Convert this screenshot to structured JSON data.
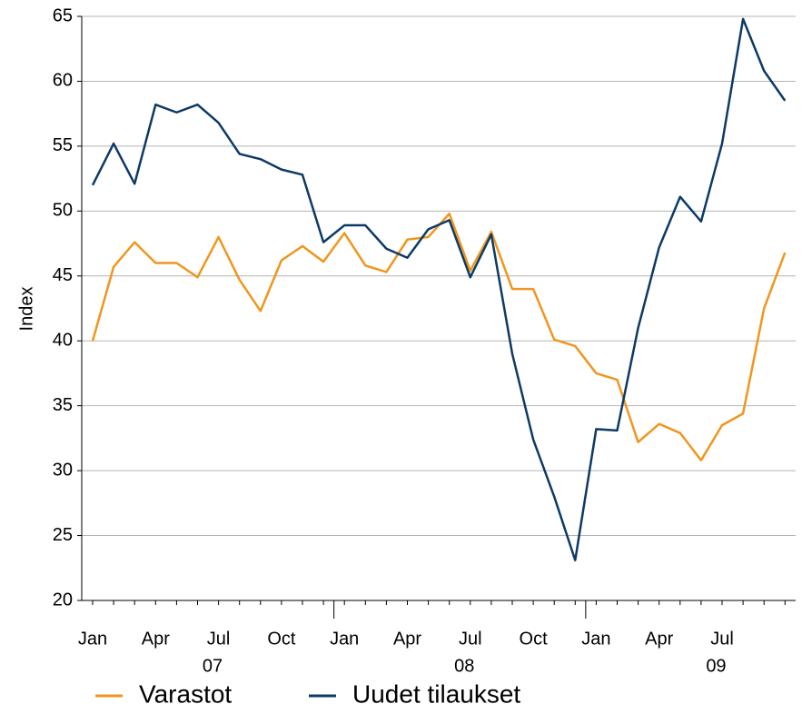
{
  "chart_data": {
    "type": "line",
    "y_label": "Index",
    "categories": [
      "Jan",
      null,
      null,
      "Apr",
      null,
      null,
      "Jul",
      null,
      null,
      "Oct",
      null,
      null,
      "Jan",
      null,
      null,
      "Apr",
      null,
      null,
      "Jul",
      null,
      null,
      "Oct",
      null,
      null,
      "Jan",
      null,
      null,
      "Apr",
      null,
      null,
      "Jul",
      null,
      null,
      null
    ],
    "year_labels": [
      "07",
      "08",
      "09"
    ],
    "series": [
      {
        "name": "Varastot",
        "color": "#f0961e",
        "values": [
          40,
          45.7,
          47.6,
          46,
          46,
          44.9,
          48,
          44.7,
          42.3,
          46.2,
          47.3,
          46.1,
          48.3,
          45.8,
          45.3,
          47.8,
          48,
          49.8,
          45.4,
          48.4,
          44,
          44,
          40.1,
          39.6,
          37.5,
          37,
          32.2,
          33.6,
          32.9,
          30.8,
          33.5,
          34.4,
          42.5,
          46.8
        ]
      },
      {
        "name": "Uudet tilaukset",
        "color": "#0d3a66",
        "values": [
          52,
          55.2,
          52.1,
          58.2,
          57.6,
          58.2,
          56.8,
          54.4,
          54,
          53.2,
          52.8,
          47.6,
          48.9,
          48.9,
          47.1,
          46.4,
          48.6,
          49.3,
          44.9,
          48.2,
          39,
          32.4,
          28,
          23.1,
          33.2,
          33.1,
          41,
          47.2,
          51.1,
          49.2,
          55.2,
          64.8,
          60.8,
          58.5
        ]
      }
    ],
    "ylim": [
      20,
      65
    ],
    "yticks": [
      20,
      25,
      30,
      35,
      40,
      45,
      50,
      55,
      60,
      65
    ],
    "grid": true
  }
}
